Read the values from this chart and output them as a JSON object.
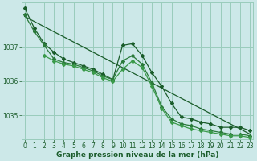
{
  "bg_color": "#cce8e8",
  "grid_color": "#99ccbb",
  "line_color": "#1a5c2a",
  "xlabel": "Graphe pression niveau de la mer (hPa)",
  "xlim": [
    -0.3,
    23.3
  ],
  "ylim": [
    1034.3,
    1038.3
  ],
  "yticks": [
    1035,
    1036,
    1037
  ],
  "xtick_labels": [
    "0",
    "1",
    "2",
    "3",
    "4",
    "5",
    "6",
    "7",
    "8",
    "9",
    "10",
    "11",
    "12",
    "13",
    "14",
    "15",
    "16",
    "17",
    "18",
    "19",
    "20",
    "21",
    "22",
    "23"
  ],
  "series1_x": [
    0,
    1,
    2,
    3,
    4,
    5,
    6,
    7,
    8,
    9,
    10,
    11,
    12,
    13,
    14,
    15,
    16,
    17,
    18,
    19,
    20,
    21,
    22,
    23
  ],
  "series1_y": [
    1038.15,
    1037.55,
    1037.1,
    1036.85,
    1036.65,
    1036.55,
    1036.45,
    1036.35,
    1036.2,
    1036.05,
    1037.05,
    1037.1,
    1036.75,
    1036.25,
    1035.85,
    1035.35,
    1034.95,
    1034.9,
    1034.8,
    1034.75,
    1034.65,
    1034.65,
    1034.65,
    1034.55
  ],
  "series2_x": [
    0,
    1,
    2,
    3,
    4,
    5,
    6,
    7,
    8,
    9,
    10,
    11,
    12,
    13,
    14,
    15,
    16,
    17,
    18,
    19,
    20,
    21,
    22,
    23
  ],
  "series2_y": [
    1037.95,
    1037.45,
    1037.05,
    1036.65,
    1036.55,
    1036.5,
    1036.4,
    1036.3,
    1036.15,
    1036.05,
    1036.6,
    1036.75,
    1036.5,
    1035.95,
    1035.25,
    1034.9,
    1034.75,
    1034.7,
    1034.6,
    1034.55,
    1034.5,
    1034.45,
    1034.45,
    1034.4
  ],
  "series3_x": [
    2,
    3,
    4,
    5,
    6,
    7,
    8,
    9,
    10,
    11,
    12,
    13,
    14,
    15,
    16,
    17,
    18,
    19,
    20,
    21,
    22,
    23
  ],
  "series3_y": [
    1036.75,
    1036.6,
    1036.5,
    1036.45,
    1036.35,
    1036.25,
    1036.1,
    1036.0,
    1036.35,
    1036.6,
    1036.4,
    1035.85,
    1035.2,
    1034.8,
    1034.7,
    1034.6,
    1034.55,
    1034.5,
    1034.45,
    1034.4,
    1034.4,
    1034.35
  ],
  "trend_x": [
    0,
    23
  ],
  "trend_y": [
    1037.9,
    1034.45
  ],
  "line_dark": "#1a5c2a",
  "line_mid": "#2a7a3a",
  "line_light": "#3a9a4a",
  "marker": "D",
  "markersize": 2.0,
  "linewidth": 0.9,
  "tick_fontsize": 5.5,
  "label_fontsize": 6.5
}
